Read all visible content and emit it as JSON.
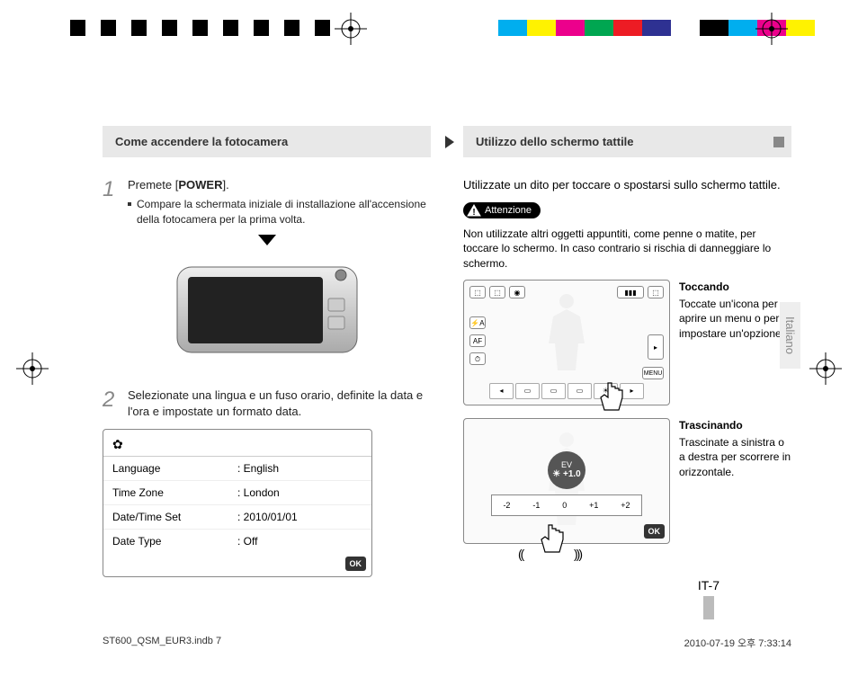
{
  "colorBarLeft": [
    "#000000",
    "#ffffff",
    "#000000",
    "#ffffff",
    "#000000",
    "#ffffff",
    "#000000",
    "#ffffff",
    "#000000",
    "#ffffff",
    "#000000",
    "#ffffff",
    "#000000",
    "#ffffff",
    "#000000",
    "#ffffff",
    "#000000"
  ],
  "colorBarRight": [
    "#00aeef",
    "#fff200",
    "#ec008c",
    "#00a651",
    "#ed1c24",
    "#2e3192",
    "#ffffff",
    "#000000",
    "#00aeef",
    "#ec008c",
    "#fff200"
  ],
  "left": {
    "header": "Come accendere la fotocamera",
    "step1": {
      "text_pre": "Premete [",
      "power": "POWER",
      "text_post": "].",
      "bullet": "Compare la schermata iniziale di installazione all'accensione della fotocamera per la prima volta."
    },
    "step2": {
      "text": "Selezionate una lingua e un fuso orario, definite la data e l'ora e impostate un formato data."
    },
    "settings": {
      "rows": [
        {
          "label": "Language",
          "value": ": English"
        },
        {
          "label": "Time Zone",
          "value": ": London"
        },
        {
          "label": "Date/Time Set",
          "value": ": 2010/01/01"
        },
        {
          "label": "Date Type",
          "value": ": Off"
        }
      ],
      "ok": "OK"
    }
  },
  "right": {
    "header": "Utilizzo dello schermo tattile",
    "intro": "Utilizzate un dito per toccare o spostarsi sullo schermo tattile.",
    "caution_label": "Attenzione",
    "caution_text": "Non utilizzate altri oggetti appuntiti, come penne o matite, per toccare lo schermo. In caso contrario si rischia di danneggiare lo schermo.",
    "touch1": {
      "title": "Toccando",
      "text": "Toccate un'icona per aprire un menu o per impostare un'opzione."
    },
    "touch2": {
      "title": "Trascinando",
      "text": "Trascinate a sinistra o a destra per scorrere in orizzontale."
    },
    "ev_label": "EV",
    "ev_value": "☀ +1.0",
    "ev_ticks": [
      "-2",
      "-1",
      "0",
      "+1",
      "+2"
    ],
    "menu_label": "MENU"
  },
  "sideTab": "Italiano",
  "pageNum": "IT-7",
  "footer": {
    "left": "ST600_QSM_EUR3.indb   7",
    "right": "2010-07-19   오후 7:33:14"
  }
}
